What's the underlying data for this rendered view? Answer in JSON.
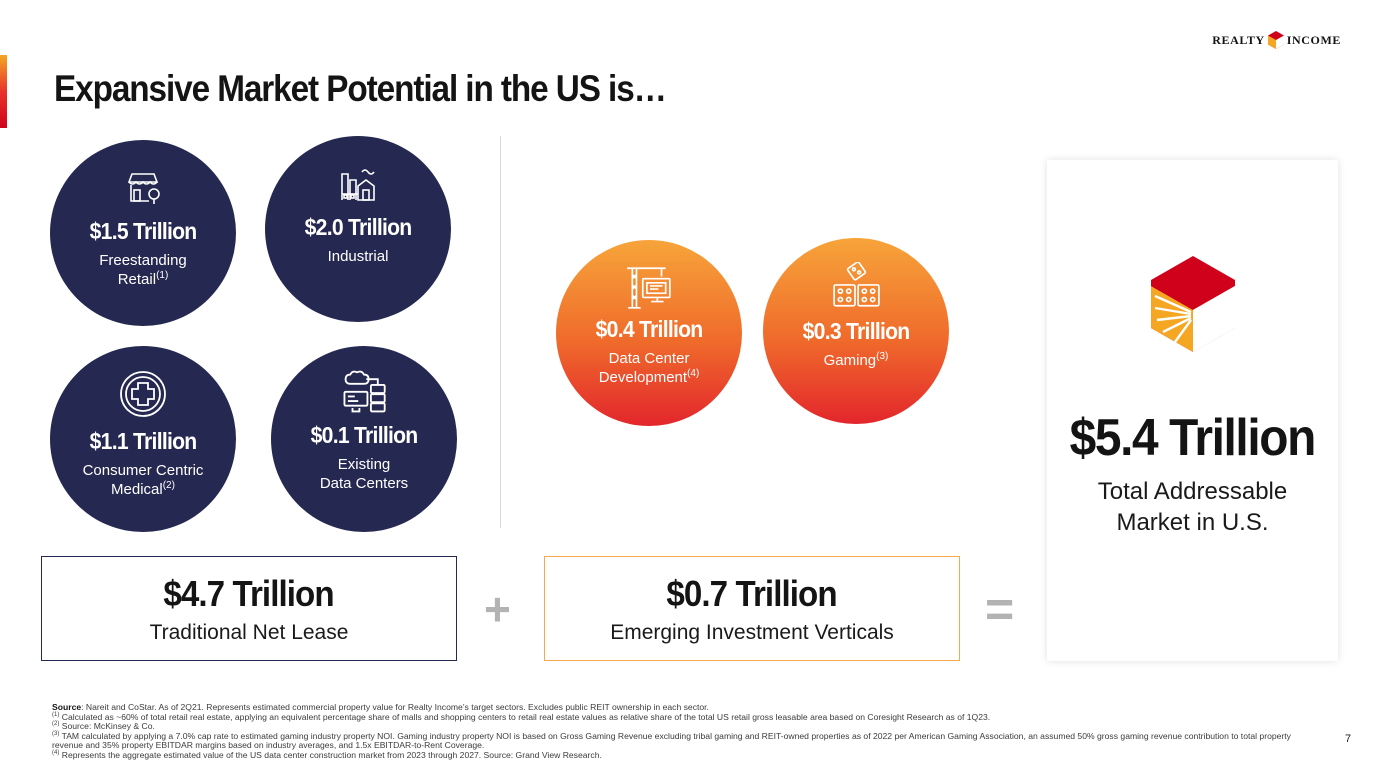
{
  "brand": {
    "logo_left": "REALTY",
    "logo_right": "INCOME",
    "accent": "#e8322a",
    "navy": "#252850",
    "orange": "#f7a43a",
    "red": "#d0021b"
  },
  "title": "Expansive Market Potential in the US is…",
  "traditional": [
    {
      "value": "$1.5 Trillion",
      "label": "Freestanding",
      "label2": "Retail",
      "note": "(1)",
      "icon": "storefront-icon"
    },
    {
      "value": "$2.0 Trillion",
      "label": "Industrial",
      "icon": "factory-icon"
    },
    {
      "value": "$1.1 Trillion",
      "label": "Consumer Centric",
      "label2": "Medical",
      "note": "(2)",
      "icon": "medical-cross-icon"
    },
    {
      "value": "$0.1 Trillion",
      "label": "Existing",
      "label2": "Data Centers",
      "icon": "server-cloud-icon"
    }
  ],
  "emerging": [
    {
      "value": "$0.4 Trillion",
      "label": "Data Center",
      "label2": "Development",
      "note": "(4)",
      "icon": "crane-computer-icon"
    },
    {
      "value": "$0.3 Trillion",
      "label": "Gaming",
      "note": "(3)",
      "icon": "dice-icon"
    }
  ],
  "summary": {
    "traditional_value": "$4.7 Trillion",
    "traditional_label": "Traditional Net Lease",
    "plus": "+",
    "emerging_value": "$0.7 Trillion",
    "emerging_label": "Emerging Investment Verticals",
    "equals": "="
  },
  "total": {
    "value": "$5.4 Trillion",
    "label_line1": "Total Addressable",
    "label_line2": "Market in U.S."
  },
  "footnotes": {
    "source_label": "Source",
    "source_text": ": Nareit and CoStar. As of 2Q21. Represents estimated commercial property value for Realty Income’s target sectors. Excludes public REIT ownership in each sector.",
    "n1_mark": "(1)",
    "n1": "Calculated as ~60% of total retail real estate, applying an equivalent percentage share of malls and shopping centers to retail real estate values as relative share of the total US retail gross leasable area based on Coresight Research as of 1Q23.",
    "n2_mark": "(2)",
    "n2": "Source: McKinsey & Co.",
    "n3_mark": "(3)",
    "n3": "TAM calculated by applying a 7.0% cap rate to estimated gaming industry property NOI. Gaming industry property NOI is based on Gross Gaming Revenue excluding tribal gaming and REIT-owned properties as of 2022 per American Gaming Association, an assumed 50% gross gaming revenue contribution to total property revenue and 35% property EBITDAR margins based on industry averages, and 1.5x EBITDAR-to-Rent Coverage.",
    "n4_mark": "(4)",
    "n4": "Represents the aggregate estimated value of the US data center construction market from 2023 through 2027. Source: Grand View Research."
  },
  "page_number": "7"
}
